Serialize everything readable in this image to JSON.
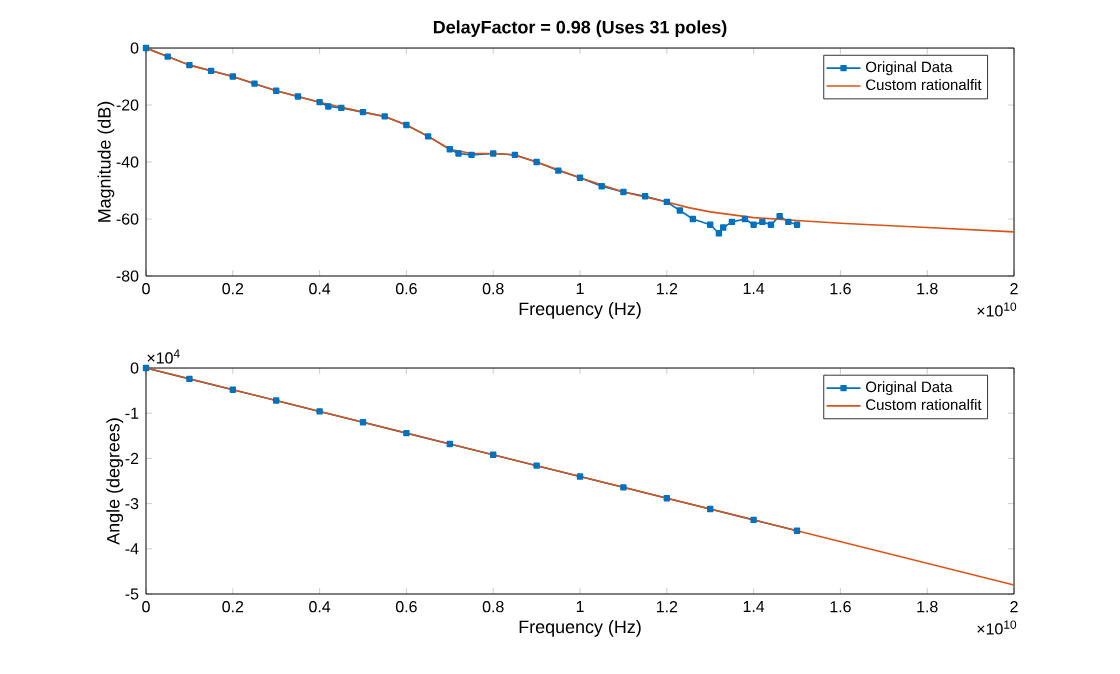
{
  "chart_data": [
    {
      "type": "line",
      "title": "DelayFactor = 0.98 (Uses 31 poles)",
      "xlabel": "Frequency (Hz)",
      "ylabel": "Magnitude (dB)",
      "annotations": [
        "×10$^{10}$"
      ],
      "xlim": [
        0,
        2
      ],
      "ylim": [
        -80,
        0
      ],
      "xticks": [
        0,
        0.2,
        0.4,
        0.6,
        0.8,
        1,
        1.2,
        1.4,
        1.6,
        1.8,
        2
      ],
      "yticks": [
        -80,
        -60,
        -40,
        -20,
        0
      ],
      "legend": "top right",
      "line_style": "solid",
      "series": [
        {
          "name": "Original Data",
          "color": "#0072bd",
          "marker": "square",
          "x": [
            0,
            0.05,
            0.1,
            0.15,
            0.2,
            0.25,
            0.3,
            0.35,
            0.4,
            0.42,
            0.45,
            0.5,
            0.55,
            0.6,
            0.65,
            0.7,
            0.72,
            0.75,
            0.8,
            0.85,
            0.9,
            0.95,
            1.0,
            1.05,
            1.1,
            1.15,
            1.2,
            1.23,
            1.26,
            1.3,
            1.32,
            1.33,
            1.35,
            1.38,
            1.4,
            1.42,
            1.44,
            1.46,
            1.48,
            1.5
          ],
          "values": [
            0,
            -3,
            -6,
            -8,
            -10,
            -12.5,
            -15,
            -17,
            -19,
            -20.5,
            -21,
            -22.5,
            -24,
            -27,
            -31,
            -35.5,
            -37,
            -37.5,
            -37,
            -37.5,
            -40,
            -43,
            -45.5,
            -48.5,
            -50.5,
            -52,
            -54,
            -57,
            -60,
            -62,
            -65,
            -63,
            -61,
            -60,
            -62,
            -61,
            -62,
            -59,
            -61,
            -62
          ]
        },
        {
          "name": "Custom rationalfit",
          "color": "#d95319",
          "marker": "none",
          "x": [
            0,
            0.1,
            0.2,
            0.3,
            0.4,
            0.5,
            0.55,
            0.6,
            0.65,
            0.7,
            0.75,
            0.8,
            0.85,
            0.9,
            1.0,
            1.1,
            1.2,
            1.25,
            1.3,
            1.4,
            1.5,
            1.6,
            1.8,
            2.0
          ],
          "values": [
            0,
            -6,
            -10,
            -15,
            -19,
            -22.5,
            -24,
            -27,
            -31,
            -35.5,
            -37,
            -37,
            -37.5,
            -40,
            -45.5,
            -50.5,
            -54,
            -56,
            -57.5,
            -59.5,
            -60.5,
            -61.5,
            -63,
            -64.5
          ]
        }
      ]
    },
    {
      "type": "line",
      "xlabel": "Frequency (Hz)",
      "ylabel": "Angle (degrees)",
      "annotations": [
        "×10$^{4}$",
        "×10$^{10}$"
      ],
      "xlim": [
        0,
        2
      ],
      "ylim": [
        -5,
        0
      ],
      "xticks": [
        0,
        0.2,
        0.4,
        0.6,
        0.8,
        1,
        1.2,
        1.4,
        1.6,
        1.8,
        2
      ],
      "yticks": [
        -5,
        -4,
        -3,
        -2,
        -1,
        0
      ],
      "legend": "top right",
      "line_style": "solid",
      "series": [
        {
          "name": "Original Data",
          "color": "#0072bd",
          "marker": "square",
          "x": [
            0,
            0.1,
            0.2,
            0.3,
            0.4,
            0.5,
            0.6,
            0.7,
            0.8,
            0.9,
            1.0,
            1.1,
            1.2,
            1.3,
            1.4,
            1.5
          ],
          "values": [
            0,
            -0.24,
            -0.48,
            -0.72,
            -0.96,
            -1.2,
            -1.44,
            -1.68,
            -1.92,
            -2.16,
            -2.4,
            -2.64,
            -2.88,
            -3.12,
            -3.36,
            -3.6
          ]
        },
        {
          "name": "Custom rationalfit",
          "color": "#d95319",
          "marker": "none",
          "x": [
            0,
            0.5,
            1.0,
            1.5,
            2.0
          ],
          "values": [
            0,
            -1.2,
            -2.4,
            -3.6,
            -4.8
          ]
        }
      ]
    }
  ]
}
